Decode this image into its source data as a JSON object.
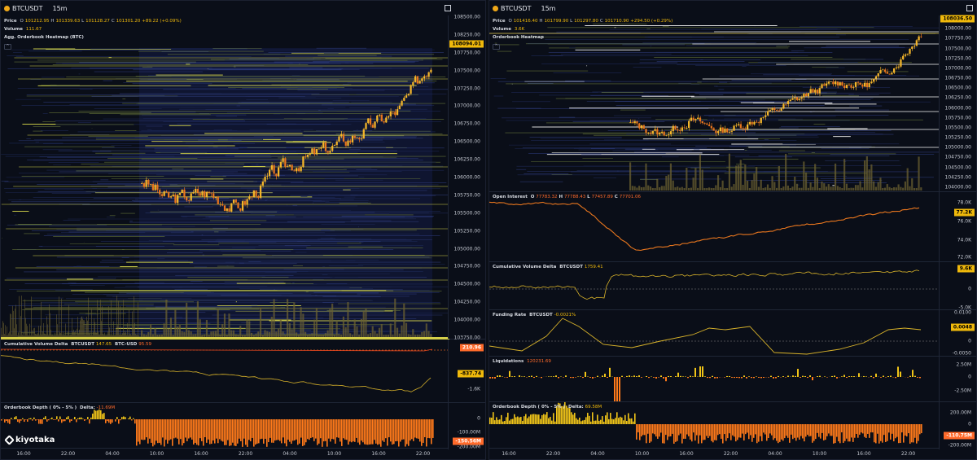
{
  "left": {
    "symbol": "BTCUSDT",
    "timeframe": "15m",
    "price_header": {
      "label": "Price",
      "o": "O",
      "o_val": "101212.95",
      "h": "H",
      "h_val": "101339.63",
      "l": "L",
      "l_val": "101128.27",
      "c": "C",
      "c_val": "101301.20",
      "change": "+89.22 (+0.09%)"
    },
    "volume_header": {
      "label": "Volume",
      "val": "111.67"
    },
    "heatmap_title": "Agg. Orderbook Heatmap (BTC)",
    "price_ticks": [
      "108500.00",
      "108250.00",
      "107750.00",
      "107500.00",
      "107250.00",
      "107000.00",
      "106750.00",
      "106500.00",
      "106250.00",
      "106000.00",
      "105750.00",
      "105500.00",
      "105250.00",
      "105000.00",
      "104750.00",
      "104500.00",
      "104250.00",
      "104000.00",
      "103750.00"
    ],
    "price_tag": "108094.01",
    "cvd": {
      "title": "Cumulative Volume Delta",
      "s1": "BTCUSDT",
      "s1_val": "147.65",
      "s2": "BTC-USD",
      "s2_val": "95.59",
      "ticks": [
        "-1.6K"
      ],
      "tag_top": "210.96",
      "tag_mid": "-837.74"
    },
    "obd": {
      "title": "Orderbook Depth ( 0% - 5% )",
      "series": "Delta",
      "val": "-11.69M",
      "ticks": [
        "0",
        "-100.00M",
        "-200.00M"
      ],
      "tag": "-150.56M"
    },
    "x_ticks": [
      "16:00",
      "22:00",
      "04:00",
      "10:00",
      "16:00",
      "22:00",
      "04:00",
      "10:00",
      "16:00",
      "22:00"
    ],
    "logo_text": "kiyotaka"
  },
  "right": {
    "symbol": "BTCUSDT",
    "timeframe": "15m",
    "price_header": {
      "label": "Price",
      "o": "O",
      "o_val": "101416.40",
      "h": "H",
      "h_val": "101799.90",
      "l": "L",
      "l_val": "101297.80",
      "c": "C",
      "c_val": "101710.90",
      "change": "+294.50 (+0.29%)"
    },
    "volume_header": {
      "label": "Volume",
      "val": "3.6K"
    },
    "heatmap_title": "Orderbook Heatmap",
    "price_ticks": [
      "108250.00",
      "108000.00",
      "107750.00",
      "107500.00",
      "107250.00",
      "107000.00",
      "106750.00",
      "106500.00",
      "106250.00",
      "106000.00",
      "105750.00",
      "105500.00",
      "105250.00",
      "105000.00",
      "104750.00",
      "104500.00",
      "104250.00",
      "104000.00"
    ],
    "price_tag": "108036.50",
    "oi": {
      "title": "Open Interest",
      "o_val": "77783.32",
      "h_val": "77788.43",
      "l_val": "77457.89",
      "c_val": "77701.06",
      "ticks": [
        "78.0K",
        "76.0K",
        "74.0K",
        "72.0K"
      ],
      "tag": "77.2K"
    },
    "cvd": {
      "title": "Cumulative Volume Delta",
      "s1": "BTCUSDT",
      "s1_val": "1759.41",
      "ticks": [
        "0",
        "-5.0K"
      ],
      "tag": "9.6K"
    },
    "fr": {
      "title": "Funding Rate",
      "s1": "BTCUSDT",
      "s1_val": "-0.0021%",
      "ticks": [
        "0.0100",
        "0",
        "-0.0050"
      ],
      "tag": "0.0048"
    },
    "liq": {
      "title": "Liquidations",
      "val": "120231.69",
      "ticks": [
        "2.50M",
        "0",
        "-2.50M"
      ]
    },
    "obd": {
      "title": "Orderbook Depth ( 0% - 5% )",
      "series": "Delta",
      "val": "69.58M",
      "ticks": [
        "200.00M",
        "0",
        "-200.00M"
      ],
      "tag": "-110.75M"
    },
    "x_ticks": [
      "16:00",
      "22:00",
      "04:00",
      "10:00",
      "16:00",
      "22:00",
      "04:00",
      "10:00",
      "16:00",
      "22:00"
    ]
  },
  "colors": {
    "gold": "#f0b90b",
    "orange": "#ff7a1a",
    "bg": "#0a0e18",
    "heat_low": "#3b3f8f",
    "heat_high": "#e8e84a"
  }
}
